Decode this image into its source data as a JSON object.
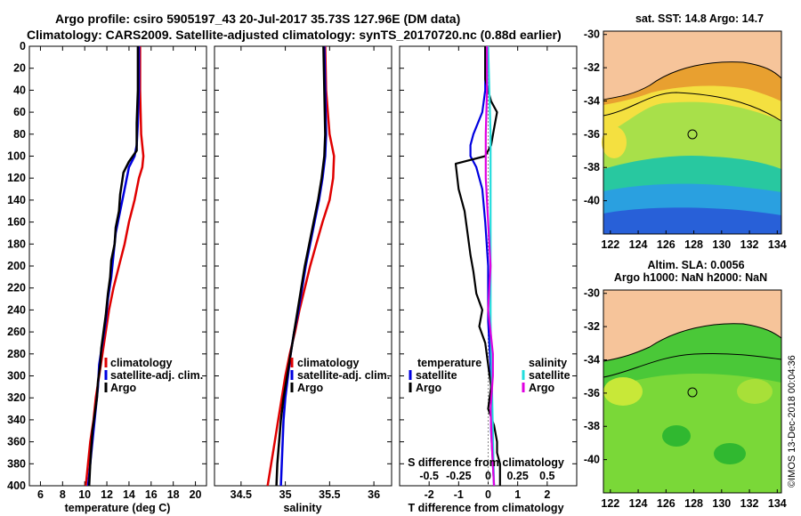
{
  "title": {
    "line1": "Argo profile: csiro 5905197_43 20-Jul-2017 35.73S 127.96E (DM data)",
    "line2": "Climatology: CARS2009. Satellite-adjusted climatology: synTS_20170720.nc (0.88d earlier)"
  },
  "colors": {
    "climatology": "#e00000",
    "satellite": "#0000e0",
    "argo": "#000000",
    "sal_satellite": "#22dddd",
    "sal_argo": "#e000e0",
    "land": "#f6c49a",
    "track_line": "#000000"
  },
  "chart_data": [
    {
      "type": "line",
      "name": "temperature",
      "xlabel": "temperature (deg C)",
      "ylabel": "",
      "xlim": [
        5,
        21
      ],
      "ylim": [
        400,
        0
      ],
      "xticks": [
        6,
        8,
        10,
        12,
        14,
        16,
        18,
        20
      ],
      "yticks": [
        0,
        20,
        40,
        60,
        80,
        100,
        120,
        140,
        160,
        180,
        200,
        220,
        240,
        260,
        280,
        300,
        320,
        340,
        360,
        380,
        400
      ],
      "legend": {
        "position": "lower-right",
        "items": [
          "climatology",
          "satellite-adj. clim.",
          "Argo"
        ]
      },
      "series": [
        {
          "name": "climatology",
          "color": "#e00000",
          "points": [
            [
              15.0,
              0
            ],
            [
              15.0,
              40
            ],
            [
              15.1,
              80
            ],
            [
              15.3,
              100
            ],
            [
              15.2,
              110
            ],
            [
              14.9,
              120
            ],
            [
              14.5,
              140
            ],
            [
              14.0,
              160
            ],
            [
              13.6,
              180
            ],
            [
              13.1,
              200
            ],
            [
              12.6,
              220
            ],
            [
              12.2,
              240
            ],
            [
              11.9,
              260
            ],
            [
              11.6,
              280
            ],
            [
              11.3,
              300
            ],
            [
              11.0,
              320
            ],
            [
              10.8,
              340
            ],
            [
              10.5,
              360
            ],
            [
              10.3,
              380
            ],
            [
              10.1,
              400
            ]
          ]
        },
        {
          "name": "satellite-adj. clim.",
          "color": "#0000e0",
          "points": [
            [
              14.9,
              0
            ],
            [
              14.9,
              40
            ],
            [
              14.8,
              70
            ],
            [
              14.7,
              90
            ],
            [
              14.5,
              100
            ],
            [
              14.0,
              110
            ],
            [
              13.6,
              130
            ],
            [
              13.2,
              150
            ],
            [
              12.8,
              170
            ],
            [
              12.6,
              190
            ],
            [
              12.4,
              210
            ],
            [
              12.1,
              230
            ],
            [
              11.9,
              250
            ],
            [
              11.6,
              270
            ],
            [
              11.3,
              290
            ],
            [
              11.2,
              310
            ],
            [
              11.0,
              330
            ],
            [
              10.8,
              350
            ],
            [
              10.6,
              370
            ],
            [
              10.4,
              390
            ],
            [
              10.3,
              400
            ]
          ]
        },
        {
          "name": "Argo",
          "color": "#000000",
          "points": [
            [
              14.8,
              0
            ],
            [
              14.8,
              40
            ],
            [
              14.7,
              70
            ],
            [
              14.7,
              95
            ],
            [
              14.0,
              105
            ],
            [
              13.5,
              115
            ],
            [
              13.2,
              135
            ],
            [
              13.1,
              150
            ],
            [
              12.8,
              165
            ],
            [
              12.7,
              180
            ],
            [
              12.4,
              195
            ],
            [
              12.3,
              210
            ],
            [
              12.1,
              225
            ],
            [
              11.9,
              245
            ],
            [
              11.7,
              260
            ],
            [
              11.5,
              275
            ],
            [
              11.4,
              290
            ],
            [
              11.2,
              305
            ],
            [
              11.1,
              320
            ],
            [
              10.9,
              335
            ],
            [
              10.7,
              350
            ],
            [
              10.6,
              365
            ],
            [
              10.5,
              380
            ],
            [
              10.4,
              400
            ]
          ]
        }
      ]
    },
    {
      "type": "line",
      "name": "salinity",
      "xlabel": "salinity",
      "ylabel": "",
      "xlim": [
        34.2,
        36.2
      ],
      "xticks": [
        34.5,
        35,
        35.5,
        36
      ],
      "xticklabels": [
        "34.5",
        "35",
        "35.5",
        "36"
      ],
      "ylim": [
        400,
        0
      ],
      "legend": {
        "position": "lower-right",
        "items": [
          "climatology",
          "satellite-adj. clim.",
          "Argo"
        ]
      },
      "series": [
        {
          "name": "climatology",
          "color": "#e00000",
          "points": [
            [
              35.45,
              0
            ],
            [
              35.46,
              40
            ],
            [
              35.5,
              80
            ],
            [
              35.55,
              100
            ],
            [
              35.54,
              120
            ],
            [
              35.5,
              140
            ],
            [
              35.42,
              160
            ],
            [
              35.35,
              180
            ],
            [
              35.28,
              200
            ],
            [
              35.22,
              220
            ],
            [
              35.16,
              240
            ],
            [
              35.11,
              260
            ],
            [
              35.05,
              280
            ],
            [
              35.0,
              300
            ],
            [
              34.96,
              320
            ],
            [
              34.92,
              340
            ],
            [
              34.88,
              360
            ],
            [
              34.84,
              380
            ],
            [
              34.8,
              400
            ]
          ]
        },
        {
          "name": "satellite-adj. clim.",
          "color": "#0000e0",
          "points": [
            [
              35.44,
              0
            ],
            [
              35.45,
              40
            ],
            [
              35.46,
              80
            ],
            [
              35.45,
              100
            ],
            [
              35.42,
              120
            ],
            [
              35.38,
              140
            ],
            [
              35.33,
              160
            ],
            [
              35.28,
              180
            ],
            [
              35.23,
              200
            ],
            [
              35.19,
              220
            ],
            [
              35.15,
              240
            ],
            [
              35.1,
              260
            ],
            [
              35.06,
              280
            ],
            [
              35.03,
              300
            ],
            [
              35.0,
              320
            ],
            [
              34.98,
              340
            ],
            [
              34.97,
              360
            ],
            [
              34.96,
              380
            ],
            [
              34.95,
              400
            ]
          ]
        },
        {
          "name": "Argo",
          "color": "#000000",
          "points": [
            [
              35.43,
              0
            ],
            [
              35.44,
              40
            ],
            [
              35.45,
              80
            ],
            [
              35.44,
              100
            ],
            [
              35.41,
              120
            ],
            [
              35.37,
              140
            ],
            [
              35.32,
              160
            ],
            [
              35.27,
              180
            ],
            [
              35.22,
              200
            ],
            [
              35.18,
              220
            ],
            [
              35.14,
              240
            ],
            [
              35.1,
              260
            ],
            [
              35.06,
              280
            ],
            [
              35.02,
              300
            ],
            [
              34.98,
              320
            ],
            [
              34.95,
              340
            ],
            [
              34.93,
              360
            ],
            [
              34.91,
              380
            ],
            [
              34.9,
              400
            ]
          ]
        }
      ]
    },
    {
      "type": "line",
      "name": "difference",
      "xlabel": "T difference from climatology",
      "top_axis_label": "S difference from climatology",
      "xlim": [
        -3,
        3
      ],
      "xticks": [
        -2,
        -1,
        0,
        1,
        2
      ],
      "top_xlim": [
        -0.75,
        0.75
      ],
      "top_xticks": [
        -0.5,
        -0.25,
        0,
        0.25,
        0.5
      ],
      "ylim": [
        400,
        0
      ],
      "legend": {
        "position": "lower",
        "temperature_heading": "temperature",
        "salinity_heading": "salinity",
        "items": [
          "satellite",
          "Argo"
        ]
      },
      "series": [
        {
          "name": "temperature satellite",
          "axis": "T",
          "color": "#0000e0",
          "points": [
            [
              -0.1,
              0
            ],
            [
              -0.1,
              40
            ],
            [
              -0.2,
              60
            ],
            [
              -0.5,
              80
            ],
            [
              -0.6,
              90
            ],
            [
              -0.6,
              100
            ],
            [
              -0.4,
              110
            ],
            [
              -0.2,
              130
            ],
            [
              -0.1,
              160
            ],
            [
              0.0,
              200
            ],
            [
              0.0,
              250
            ],
            [
              0.1,
              300
            ],
            [
              0.1,
              350
            ],
            [
              0.2,
              400
            ]
          ]
        },
        {
          "name": "temperature Argo",
          "axis": "T",
          "color": "#000000",
          "points": [
            [
              -0.1,
              0
            ],
            [
              -0.1,
              30
            ],
            [
              0.1,
              50
            ],
            [
              0.3,
              60
            ],
            [
              0.2,
              75
            ],
            [
              0.1,
              90
            ],
            [
              -0.1,
              100
            ],
            [
              -1.1,
              107
            ],
            [
              -1.0,
              130
            ],
            [
              -0.8,
              150
            ],
            [
              -0.7,
              170
            ],
            [
              -0.6,
              190
            ],
            [
              -0.5,
              205
            ],
            [
              -0.4,
              225
            ],
            [
              -0.2,
              240
            ],
            [
              -0.3,
              255
            ],
            [
              -0.1,
              270
            ],
            [
              0.0,
              290
            ],
            [
              0.1,
              310
            ],
            [
              0.0,
              330
            ],
            [
              0.2,
              345
            ],
            [
              0.3,
              360
            ],
            [
              0.3,
              370
            ],
            [
              0.4,
              380
            ],
            [
              0.4,
              400
            ]
          ]
        },
        {
          "name": "salinity satellite",
          "axis": "S",
          "color": "#22dddd",
          "points": [
            [
              0.0,
              0
            ],
            [
              0.01,
              40
            ],
            [
              0.02,
              80
            ],
            [
              0.02,
              120
            ],
            [
              0.02,
              160
            ],
            [
              0.02,
              200
            ],
            [
              0.02,
              250
            ],
            [
              0.03,
              300
            ],
            [
              0.04,
              350
            ],
            [
              0.05,
              400
            ]
          ]
        },
        {
          "name": "salinity Argo",
          "axis": "S",
          "color": "#e000e0",
          "points": [
            [
              -0.01,
              0
            ],
            [
              -0.01,
              40
            ],
            [
              -0.02,
              80
            ],
            [
              -0.02,
              120
            ],
            [
              0.0,
              160
            ],
            [
              0.02,
              200
            ],
            [
              0.0,
              240
            ],
            [
              0.02,
              260
            ],
            [
              0.04,
              280
            ],
            [
              0.04,
              300
            ],
            [
              0.02,
              330
            ],
            [
              0.03,
              360
            ],
            [
              0.04,
              380
            ],
            [
              0.05,
              400
            ]
          ]
        }
      ]
    },
    {
      "type": "heatmap",
      "name": "sst-map",
      "title": "sat. SST: 14.8 Argo: 14.7",
      "xlim": [
        121.5,
        134.3
      ],
      "ylim": [
        -42.0,
        -29.8
      ],
      "xticks": [
        122,
        124,
        126,
        128,
        130,
        132,
        134
      ],
      "yticks": [
        -30,
        -32,
        -34,
        -36,
        -38,
        -40
      ],
      "profile_location": {
        "lon": 127.96,
        "lat": -35.73
      }
    },
    {
      "type": "heatmap",
      "name": "sla-map",
      "title": "Altim. SLA: 0.0056",
      "subtitle": "Argo h1000: NaN h2000: NaN",
      "xlim": [
        121.5,
        134.3
      ],
      "ylim": [
        -42.0,
        -29.8
      ],
      "xticks": [
        122,
        124,
        126,
        128,
        130,
        132,
        134
      ],
      "yticks": [
        -30,
        -32,
        -34,
        -36,
        -38,
        -40
      ],
      "profile_location": {
        "lon": 127.96,
        "lat": -35.73
      }
    }
  ],
  "credit": "©IMOS 13-Dec-2018 00:04:36"
}
